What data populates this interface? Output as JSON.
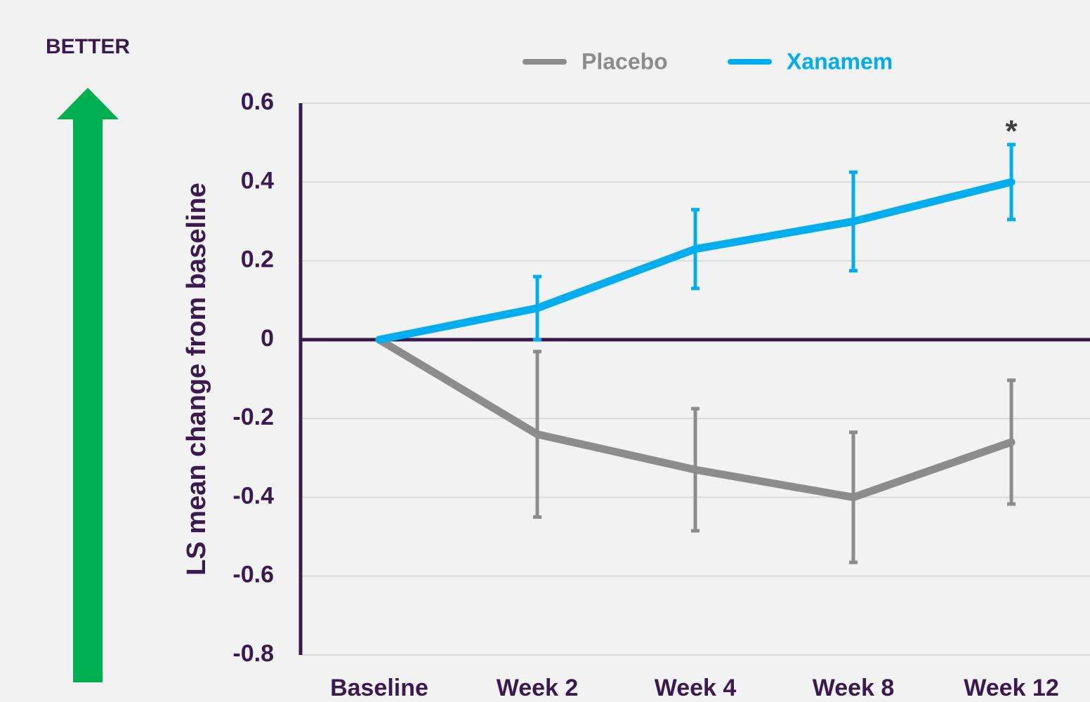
{
  "chart_data": {
    "type": "line",
    "y_label": "LS mean change from baseline",
    "side_label": "BETTER",
    "annotation": "*",
    "categories": [
      "Baseline",
      "Week 2",
      "Week 4",
      "Week 8",
      "Week 12"
    ],
    "series": [
      {
        "name": "Placebo",
        "color": "#8c8c8c",
        "values": [
          0,
          -0.24,
          -0.33,
          -0.4,
          -0.26
        ],
        "errors": [
          null,
          0.21,
          0.155,
          0.165,
          0.157
        ]
      },
      {
        "name": "Xanamem",
        "color": "#00aeef",
        "values": [
          0,
          0.08,
          0.23,
          0.3,
          0.4
        ],
        "errors": [
          null,
          0.08,
          0.1,
          0.125,
          0.095
        ]
      }
    ],
    "ylim": [
      -0.8,
      0.6
    ],
    "yticks": [
      -0.8,
      -0.6,
      -0.4,
      -0.2,
      0,
      0.2,
      0.4,
      0.6
    ],
    "grid": true
  }
}
